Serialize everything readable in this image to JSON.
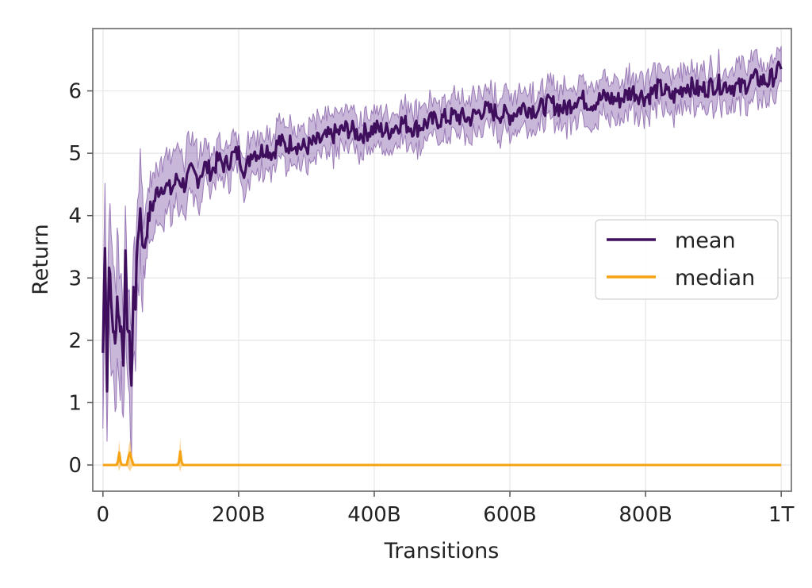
{
  "chart_data": {
    "type": "line",
    "title": "",
    "xlabel": "Transitions",
    "ylabel": "Return",
    "xlim": [
      -15,
      1015
    ],
    "ylim": [
      -0.42,
      7.0
    ],
    "x_unit_note_for_ticks": "",
    "x_ticks": [
      {
        "value": 0,
        "label": "0"
      },
      {
        "value": 200,
        "label": "200B"
      },
      {
        "value": 400,
        "label": "400B"
      },
      {
        "value": 600,
        "label": "600B"
      },
      {
        "value": 800,
        "label": "800B"
      },
      {
        "value": 1000,
        "label": "1T"
      }
    ],
    "y_ticks": [
      {
        "value": 0,
        "label": "0"
      },
      {
        "value": 1,
        "label": "1"
      },
      {
        "value": 2,
        "label": "2"
      },
      {
        "value": 3,
        "label": "3"
      },
      {
        "value": 4,
        "label": "4"
      },
      {
        "value": 5,
        "label": "5"
      },
      {
        "value": 6,
        "label": "6"
      }
    ],
    "grid": true,
    "legend": {
      "placement": "center-right"
    },
    "series": [
      {
        "name": "mean",
        "color": "#3f0f5e",
        "band_color": "#9b7bb8",
        "x": [
          0,
          3,
          6,
          9,
          12,
          15,
          18,
          21,
          24,
          27,
          30,
          33,
          36,
          39,
          42,
          45,
          48,
          51,
          55,
          60,
          65,
          70,
          75,
          80,
          90,
          100,
          110,
          120,
          130,
          140,
          150,
          160,
          170,
          180,
          190,
          200,
          210,
          220,
          230,
          240,
          250,
          260,
          270,
          280,
          290,
          300,
          320,
          340,
          360,
          380,
          400,
          420,
          440,
          460,
          480,
          500,
          520,
          540,
          560,
          580,
          600,
          620,
          640,
          660,
          680,
          700,
          720,
          740,
          760,
          780,
          800,
          820,
          840,
          860,
          880,
          900,
          920,
          940,
          960,
          980,
          1000
        ],
        "values": [
          1.8,
          3.6,
          1.2,
          3.3,
          2.6,
          2.2,
          1.9,
          2.7,
          2.3,
          2.2,
          1.7,
          3.3,
          2.3,
          2.0,
          1.3,
          2.8,
          2.6,
          3.6,
          4.1,
          3.4,
          3.8,
          4.1,
          4.2,
          4.4,
          4.5,
          4.4,
          4.6,
          4.5,
          4.7,
          4.6,
          4.8,
          4.7,
          4.9,
          4.8,
          4.95,
          5.0,
          4.7,
          5.05,
          5.0,
          5.1,
          5.0,
          5.2,
          5.1,
          5.2,
          5.1,
          5.1,
          5.2,
          5.3,
          5.4,
          5.3,
          5.4,
          5.35,
          5.5,
          5.4,
          5.5,
          5.55,
          5.6,
          5.55,
          5.7,
          5.65,
          5.6,
          5.75,
          5.7,
          5.8,
          5.7,
          5.9,
          5.8,
          5.9,
          5.85,
          6.0,
          5.9,
          6.05,
          5.9,
          6.1,
          6.0,
          6.1,
          6.1,
          6.05,
          6.2,
          6.15,
          6.35
        ]
      },
      {
        "name": "median",
        "color": "#f5a312",
        "band_color": "#f9c56a",
        "x": [
          0,
          20,
          22,
          24,
          26,
          28,
          35,
          38,
          40,
          42,
          45,
          110,
          112,
          114,
          116,
          118,
          1000
        ],
        "values": [
          0,
          0,
          0.05,
          0.2,
          0.05,
          0,
          0,
          0.15,
          0.2,
          0.1,
          0,
          0,
          0.05,
          0.22,
          0.05,
          0,
          0
        ]
      }
    ]
  }
}
